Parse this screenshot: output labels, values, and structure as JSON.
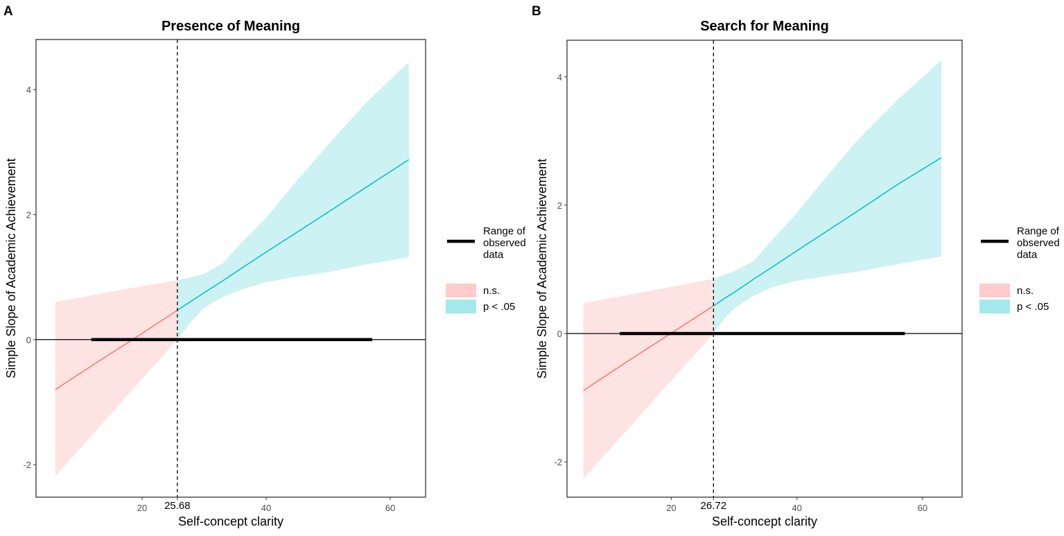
{
  "colors": {
    "ns_fill": "#fde3e2",
    "sig_fill": "#ccf2f3",
    "ns_legend": "#ffcccb",
    "sig_legend": "#a3e9eb",
    "ns_line": "#f8766d",
    "sig_line": "#00bfc4",
    "range_line": "#000000"
  },
  "legend": {
    "range_lines": [
      "Range of",
      "observed",
      "data"
    ],
    "ns_label": "n.s.",
    "sig_label": "p < .05"
  },
  "chart_data": [
    {
      "type": "line",
      "panel_label": "A",
      "title": "Presence of Meaning",
      "xlabel": "Self-concept clarity",
      "ylabel": "Simple Slope of Academic Achievement",
      "xlim": [
        2.9,
        65.7
      ],
      "ylim": [
        -2.52,
        4.8
      ],
      "xticks": [
        20,
        40,
        60
      ],
      "xtick_labels": [
        "20",
        "40",
        "60"
      ],
      "yticks": [
        -2,
        0,
        2,
        4
      ],
      "ytick_labels": [
        "-2",
        "0",
        "2",
        "4"
      ],
      "threshold": 25.68,
      "threshold_label": "25.68",
      "observed_range": [
        11.8,
        57.1
      ],
      "grid": false,
      "legend_position": "right",
      "band": [
        {
          "x": 6,
          "fit": -0.8,
          "lower": -2.18,
          "upper": 0.6
        },
        {
          "x": 12,
          "fit": -0.41,
          "lower": -1.52,
          "upper": 0.71
        },
        {
          "x": 18,
          "fit": -0.03,
          "lower": -0.85,
          "upper": 0.82
        },
        {
          "x": 25.68,
          "fit": 0.47,
          "lower": 0.0,
          "upper": 0.95
        },
        {
          "x": 28,
          "fit": 0.62,
          "lower": 0.3,
          "upper": 1.0
        },
        {
          "x": 30,
          "fit": 0.75,
          "lower": 0.51,
          "upper": 1.05
        },
        {
          "x": 33,
          "fit": 0.94,
          "lower": 0.68,
          "upper": 1.22
        },
        {
          "x": 36,
          "fit": 1.14,
          "lower": 0.8,
          "upper": 1.55
        },
        {
          "x": 40,
          "fit": 1.4,
          "lower": 0.92,
          "upper": 1.95
        },
        {
          "x": 45,
          "fit": 1.72,
          "lower": 1.01,
          "upper": 2.55
        },
        {
          "x": 50,
          "fit": 2.04,
          "lower": 1.08,
          "upper": 3.12
        },
        {
          "x": 56,
          "fit": 2.43,
          "lower": 1.2,
          "upper": 3.78
        },
        {
          "x": 63,
          "fit": 2.88,
          "lower": 1.32,
          "upper": 4.44
        }
      ]
    },
    {
      "type": "line",
      "panel_label": "B",
      "title": "Search for Meaning",
      "xlabel": "Self-concept clarity",
      "ylabel": "Simple Slope of Academic Achievement",
      "xlim": [
        3.4,
        66.3
      ],
      "ylim": [
        -2.55,
        4.57
      ],
      "xticks": [
        20,
        40,
        60
      ],
      "xtick_labels": [
        "20",
        "40",
        "60"
      ],
      "yticks": [
        -2,
        0,
        2,
        4
      ],
      "ytick_labels": [
        "-2",
        "0",
        "2",
        "4"
      ],
      "threshold": 26.72,
      "threshold_label": "26.72",
      "observed_range": [
        11.8,
        57.2
      ],
      "grid": false,
      "legend_position": "right",
      "band": [
        {
          "x": 6,
          "fit": -0.89,
          "lower": -2.26,
          "upper": 0.47
        },
        {
          "x": 12,
          "fit": -0.5,
          "lower": -1.61,
          "upper": 0.58
        },
        {
          "x": 18,
          "fit": -0.12,
          "lower": -0.95,
          "upper": 0.69
        },
        {
          "x": 26.72,
          "fit": 0.43,
          "lower": 0.0,
          "upper": 0.85
        },
        {
          "x": 28.5,
          "fit": 0.55,
          "lower": 0.24,
          "upper": 0.92
        },
        {
          "x": 30,
          "fit": 0.64,
          "lower": 0.39,
          "upper": 0.97
        },
        {
          "x": 33,
          "fit": 0.84,
          "lower": 0.58,
          "upper": 1.12
        },
        {
          "x": 36,
          "fit": 1.03,
          "lower": 0.72,
          "upper": 1.45
        },
        {
          "x": 40,
          "fit": 1.29,
          "lower": 0.82,
          "upper": 1.88
        },
        {
          "x": 45,
          "fit": 1.61,
          "lower": 0.9,
          "upper": 2.48
        },
        {
          "x": 50,
          "fit": 1.93,
          "lower": 0.97,
          "upper": 3.05
        },
        {
          "x": 56,
          "fit": 2.32,
          "lower": 1.08,
          "upper": 3.64
        },
        {
          "x": 63,
          "fit": 2.74,
          "lower": 1.2,
          "upper": 4.26
        }
      ]
    }
  ]
}
